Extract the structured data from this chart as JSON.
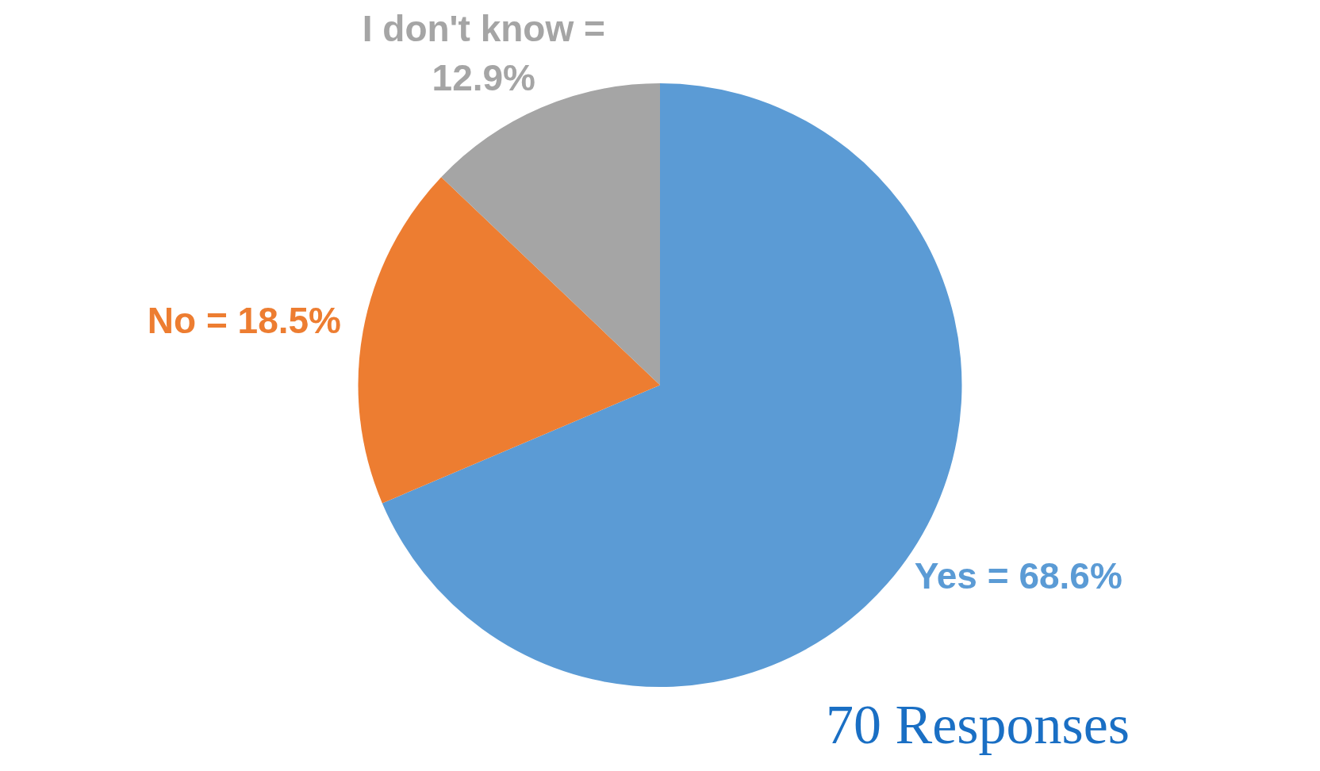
{
  "chart_data": {
    "type": "pie",
    "categories": [
      "Yes",
      "No",
      "I don't know"
    ],
    "values": [
      68.6,
      18.5,
      12.9
    ],
    "colors": [
      "#5b9bd5",
      "#ed7d31",
      "#a5a5a5"
    ],
    "value_labels": [
      "= 68.6%",
      "= 18.5%",
      "= 12.9%"
    ],
    "annotations": [
      "70 Responses"
    ],
    "legend": false
  }
}
